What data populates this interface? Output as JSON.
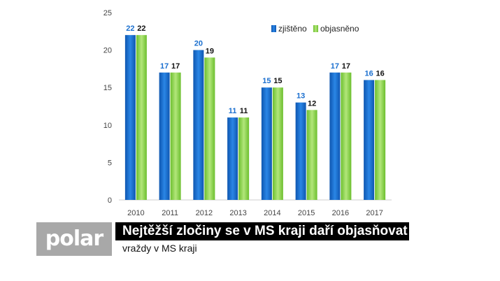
{
  "chart_data": {
    "type": "bar",
    "categories": [
      "2010",
      "2011",
      "2012",
      "2013",
      "2014",
      "2015",
      "2016",
      "2017"
    ],
    "series": [
      {
        "name": "zjištěno",
        "values": [
          22,
          17,
          20,
          11,
          15,
          13,
          17,
          16
        ],
        "color": "#1a6fcf"
      },
      {
        "name": "objasněno",
        "values": [
          22,
          17,
          19,
          11,
          15,
          12,
          17,
          16
        ],
        "color": "#8fd14f"
      }
    ],
    "y_ticks": [
      0,
      5,
      10,
      15,
      20,
      25
    ],
    "ylim": [
      0,
      25
    ],
    "grid": false,
    "legend_position": "top-right",
    "label_colors": [
      "#1a6fcf",
      "#111111"
    ]
  },
  "overlay": {
    "logo": "polar",
    "headline": "Nejtěžší zločiny se v MS kraji daří objasňovat",
    "subheadline": "vraždy v MS kraji"
  }
}
